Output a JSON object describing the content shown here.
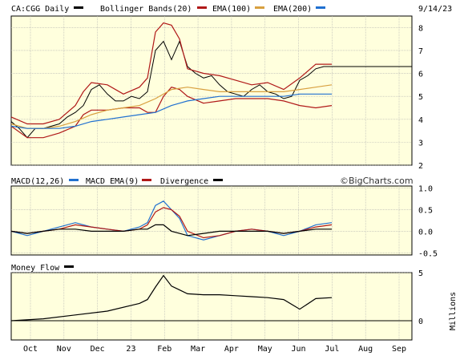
{
  "chart_data": [
    {
      "type": "line",
      "subtype": "candlestick-with-overlays",
      "title": "CA:CGG Daily",
      "date_label": "9/14/23",
      "legend": [
        {
          "label": "CA:CGG Daily",
          "color": "#000000"
        },
        {
          "label": "Bollinger Bands(20)",
          "color": "#b01818"
        },
        {
          "label": "EMA(100)",
          "color": "#d8a040"
        },
        {
          "label": "EMA(200)",
          "color": "#2070d0"
        }
      ],
      "y_ticks": [
        "8",
        "7",
        "6",
        "5",
        "4",
        "3",
        "2"
      ],
      "ylim": [
        2,
        8.5
      ],
      "x_ticks": [
        "Oct",
        "Nov",
        "Dec",
        "23",
        "Feb",
        "Mar",
        "Apr",
        "May",
        "Jun",
        "Jul",
        "Aug",
        "Sep"
      ],
      "background": "#ffffdd",
      "grid": true,
      "series": [
        {
          "name": "CA:CGG Daily",
          "color": "#000000",
          "x": [
            0,
            5,
            10,
            15,
            20,
            25,
            30,
            35,
            40,
            45,
            50,
            55,
            60,
            65,
            70,
            75,
            80,
            85,
            90,
            95,
            100,
            105,
            110,
            115,
            120,
            125,
            130,
            135,
            140,
            145,
            150,
            155,
            160,
            165,
            170,
            175,
            180,
            185,
            190,
            195,
            200,
            205,
            210,
            215,
            220,
            225,
            230,
            235,
            240,
            245,
            250
          ],
          "y": [
            3.9,
            3.6,
            3.2,
            3.6,
            3.6,
            3.7,
            3.8,
            4.1,
            4.3,
            4.6,
            5.3,
            5.5,
            5.1,
            4.8,
            4.8,
            5.0,
            4.9,
            5.2,
            7.0,
            7.4,
            6.6,
            7.4,
            6.3,
            6.0,
            5.8,
            5.9,
            5.5,
            5.2,
            5.1,
            5.0,
            5.3,
            5.5,
            5.2,
            5.1,
            4.9,
            5.0,
            5.7,
            5.9,
            6.2,
            6.3,
            6.3,
            6.3,
            6.3,
            6.3,
            6.3,
            6.3,
            6.3,
            6.3,
            6.3,
            6.3,
            6.3
          ]
        },
        {
          "name": "Bollinger Bands(20)",
          "color": "#b01818",
          "x": [
            0,
            10,
            20,
            30,
            40,
            45,
            50,
            60,
            70,
            80,
            85,
            90,
            95,
            100,
            105,
            110,
            120,
            130,
            140,
            150,
            160,
            170,
            180,
            190,
            200
          ],
          "y": [
            4.1,
            3.8,
            3.8,
            4.0,
            4.6,
            5.2,
            5.6,
            5.5,
            5.1,
            5.4,
            5.8,
            7.8,
            8.2,
            8.1,
            7.5,
            6.2,
            6.0,
            5.9,
            5.7,
            5.5,
            5.6,
            5.3,
            5.8,
            6.4,
            6.4
          ]
        },
        {
          "name": "Bollinger Bands(20) lower",
          "color": "#b01818",
          "x": [
            0,
            10,
            20,
            30,
            40,
            45,
            50,
            60,
            70,
            80,
            85,
            90,
            95,
            100,
            105,
            110,
            120,
            130,
            140,
            150,
            160,
            170,
            180,
            190,
            200
          ],
          "y": [
            3.7,
            3.2,
            3.2,
            3.4,
            3.7,
            4.2,
            4.4,
            4.4,
            4.5,
            4.5,
            4.3,
            4.3,
            5.0,
            5.4,
            5.3,
            5.0,
            4.7,
            4.8,
            4.9,
            4.9,
            4.9,
            4.8,
            4.6,
            4.5,
            4.6
          ]
        },
        {
          "name": "EMA(100)",
          "color": "#d8a040",
          "x": [
            0,
            10,
            20,
            30,
            40,
            50,
            60,
            70,
            80,
            90,
            100,
            110,
            120,
            130,
            140,
            150,
            160,
            170,
            180,
            190,
            200
          ],
          "y": [
            3.8,
            3.6,
            3.6,
            3.7,
            3.9,
            4.2,
            4.4,
            4.5,
            4.6,
            4.9,
            5.3,
            5.4,
            5.3,
            5.2,
            5.2,
            5.2,
            5.2,
            5.2,
            5.3,
            5.4,
            5.5
          ]
        },
        {
          "name": "EMA(200)",
          "color": "#2070d0",
          "x": [
            0,
            10,
            20,
            30,
            40,
            50,
            60,
            70,
            80,
            90,
            100,
            110,
            120,
            130,
            140,
            150,
            160,
            170,
            180,
            190,
            200
          ],
          "y": [
            3.7,
            3.6,
            3.6,
            3.6,
            3.7,
            3.9,
            4.0,
            4.1,
            4.2,
            4.3,
            4.6,
            4.8,
            4.9,
            5.0,
            5.0,
            5.0,
            5.0,
            5.0,
            5.1,
            5.1,
            5.1
          ]
        }
      ]
    },
    {
      "type": "line",
      "title": "MACD(12,26)",
      "watermark": "©BigCharts.com",
      "legend": [
        {
          "label": "MACD(12,26)",
          "color": "#2070d0"
        },
        {
          "label": "MACD EMA(9)",
          "color": "#b01818"
        },
        {
          "label": "Divergence",
          "color": "#000000"
        }
      ],
      "y_ticks": [
        "1.0",
        "0.5",
        "0.0",
        "-0.5"
      ],
      "ylim": [
        -0.55,
        1.05
      ],
      "grid": true,
      "series": [
        {
          "name": "MACD(12,26)",
          "color": "#2070d0",
          "x": [
            0,
            10,
            20,
            30,
            40,
            50,
            60,
            70,
            80,
            85,
            90,
            95,
            100,
            105,
            110,
            120,
            130,
            140,
            150,
            160,
            170,
            180,
            190,
            200
          ],
          "y": [
            0.0,
            -0.1,
            0.0,
            0.1,
            0.2,
            0.1,
            0.05,
            0.0,
            0.1,
            0.2,
            0.6,
            0.7,
            0.5,
            0.3,
            -0.1,
            -0.2,
            -0.1,
            0.0,
            0.05,
            0.0,
            -0.1,
            0.0,
            0.15,
            0.2
          ]
        },
        {
          "name": "MACD EMA(9)",
          "color": "#b01818",
          "x": [
            0,
            10,
            20,
            30,
            40,
            50,
            60,
            70,
            80,
            85,
            90,
            95,
            100,
            105,
            110,
            120,
            130,
            140,
            150,
            160,
            170,
            180,
            190,
            200
          ],
          "y": [
            0.0,
            -0.05,
            0.0,
            0.05,
            0.15,
            0.1,
            0.05,
            0.0,
            0.05,
            0.15,
            0.45,
            0.55,
            0.5,
            0.35,
            0.0,
            -0.15,
            -0.1,
            0.0,
            0.05,
            0.0,
            -0.05,
            0.0,
            0.1,
            0.15
          ]
        },
        {
          "name": "Divergence",
          "color": "#000000",
          "x": [
            0,
            10,
            20,
            30,
            40,
            50,
            60,
            70,
            80,
            85,
            90,
            95,
            100,
            105,
            110,
            120,
            130,
            140,
            150,
            160,
            170,
            180,
            190,
            200
          ],
          "y": [
            0.0,
            -0.05,
            0.0,
            0.05,
            0.05,
            0.0,
            0.0,
            0.0,
            0.05,
            0.05,
            0.15,
            0.15,
            0.0,
            -0.05,
            -0.1,
            -0.05,
            0.0,
            0.0,
            0.0,
            0.0,
            -0.05,
            0.0,
            0.05,
            0.05
          ]
        }
      ]
    },
    {
      "type": "line",
      "title": "Money Flow",
      "legend": [
        {
          "label": "Money Flow",
          "color": "#000000"
        }
      ],
      "y_ticks": [
        "5",
        "0"
      ],
      "ylim": [
        -2,
        5
      ],
      "ylabel": "Millions",
      "grid": true,
      "series": [
        {
          "name": "Money Flow",
          "color": "#000000",
          "x": [
            0,
            20,
            40,
            60,
            80,
            85,
            90,
            95,
            100,
            105,
            110,
            120,
            130,
            140,
            150,
            160,
            170,
            180,
            190,
            200
          ],
          "y": [
            0.0,
            0.2,
            0.6,
            1.0,
            1.8,
            2.2,
            3.5,
            4.7,
            3.6,
            3.2,
            2.8,
            2.7,
            2.7,
            2.6,
            2.5,
            2.4,
            2.2,
            1.2,
            2.3,
            2.4
          ]
        }
      ]
    }
  ]
}
